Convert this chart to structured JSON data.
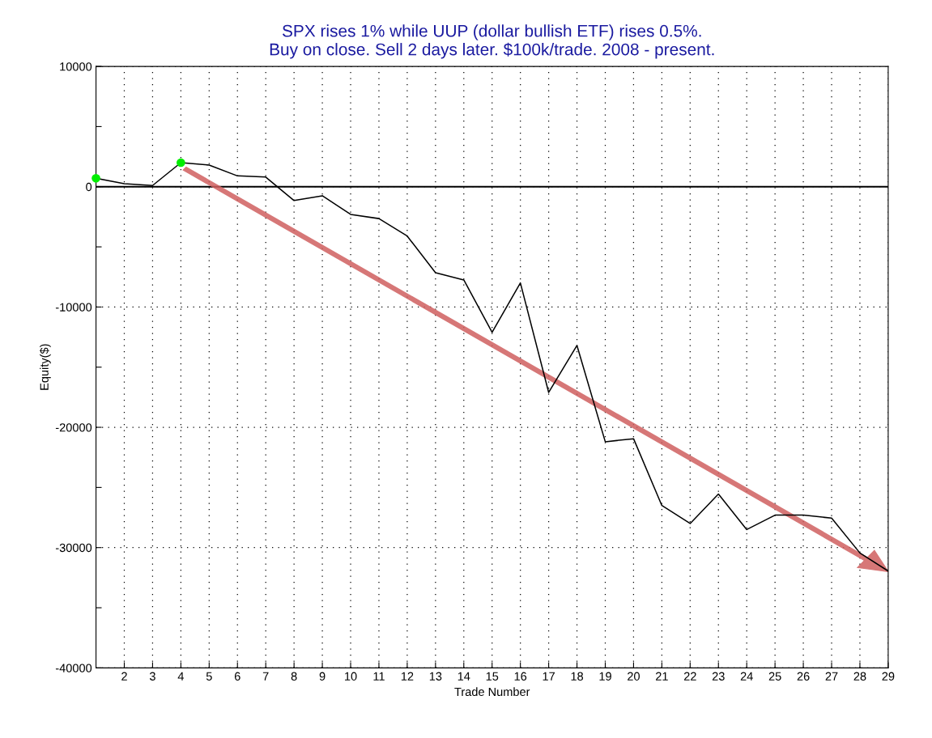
{
  "chart_data": {
    "type": "line",
    "title": "SPX rises 1% while UUP (dollar bullish ETF) rises 0.5%.\nBuy on close. Sell 2 days later. $100k/trade. 2008 - present.",
    "xlabel": "Trade Number",
    "ylabel": "Equity($)",
    "x": [
      1,
      2,
      3,
      4,
      5,
      6,
      7,
      8,
      9,
      10,
      11,
      12,
      13,
      14,
      15,
      16,
      17,
      18,
      19,
      20,
      21,
      22,
      23,
      24,
      25,
      26,
      27,
      28,
      29
    ],
    "series": [
      {
        "color": "#000000",
        "values": [
          700,
          250,
          100,
          2000,
          1800,
          900,
          800,
          -1150,
          -750,
          -2300,
          -2650,
          -4100,
          -7150,
          -7750,
          -12100,
          -8000,
          -17100,
          -13200,
          -21200,
          -20950,
          -26500,
          -28000,
          -25550,
          -28500,
          -27300,
          -27300,
          -27550,
          -30450,
          -31950
        ]
      },
      {
        "type": "scatter",
        "marker": "circle",
        "color": "#00ee00",
        "x": [
          1,
          4
        ],
        "values": [
          700,
          2000
        ]
      }
    ],
    "xlim": [
      1,
      29
    ],
    "xticks": [
      2,
      3,
      4,
      5,
      6,
      7,
      8,
      9,
      10,
      11,
      12,
      13,
      14,
      15,
      16,
      17,
      18,
      19,
      20,
      21,
      22,
      23,
      24,
      25,
      26,
      27,
      28,
      29
    ],
    "ylim": [
      -40000,
      10000
    ],
    "yticks": [
      10000,
      {
        "value": 5000,
        "label": null
      },
      0,
      {
        "value": -5000,
        "label": null
      },
      -10000,
      {
        "value": -15000,
        "label": null
      },
      -20000,
      {
        "value": -25000,
        "label": null
      },
      -30000,
      {
        "value": -35000,
        "label": null
      },
      -40000
    ],
    "ref_lines": [
      {
        "axis": "y",
        "value": 0,
        "color": "#000000",
        "line_style": "solid"
      }
    ],
    "grid": true
  }
}
